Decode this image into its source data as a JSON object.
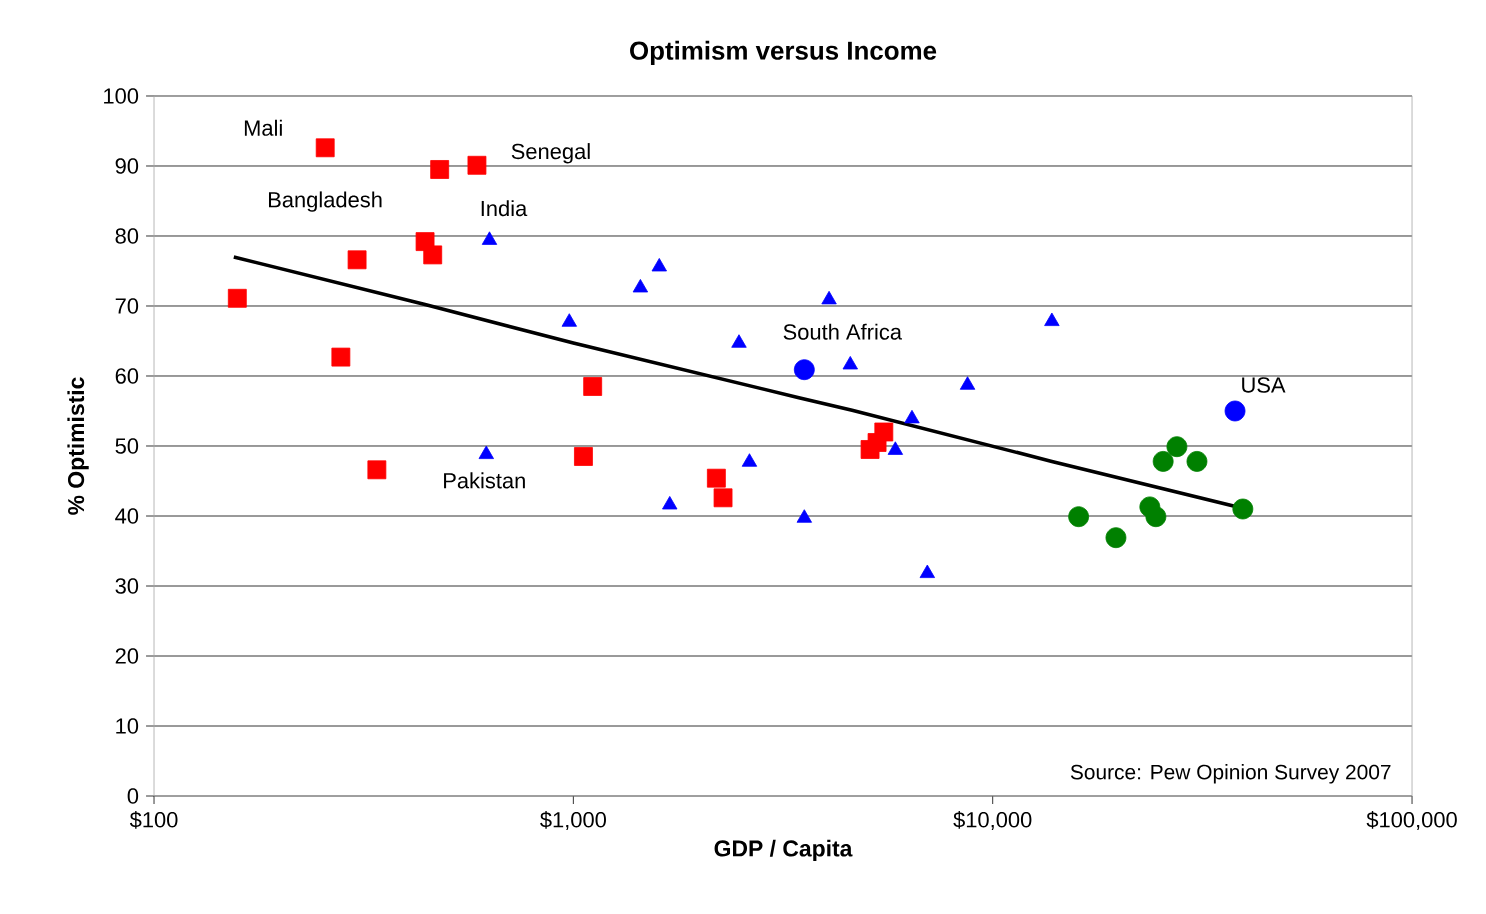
{
  "chart_data": {
    "type": "scatter",
    "title": "Optimism versus Income",
    "xlabel": "GDP / Capita",
    "ylabel": "% Optimistic",
    "log": "x",
    "xlim": [
      100,
      100000
    ],
    "ylim": [
      0,
      100
    ],
    "xticks": [
      {
        "value": 100,
        "label": "$100"
      },
      {
        "value": 1000,
        "label": "$1,000"
      },
      {
        "value": 10000,
        "label": "$10,000"
      },
      {
        "value": 100000,
        "label": "$100,000"
      }
    ],
    "yticks": [
      0,
      10,
      20,
      30,
      40,
      50,
      60,
      70,
      80,
      90,
      100
    ],
    "grid": "y",
    "series": [
      {
        "marker": "square",
        "color": "#ff0000",
        "x": [
          158,
          256,
          279,
          305,
          340,
          443,
          462,
          480,
          589,
          1112,
          1057,
          2193,
          2275,
          5500,
          5300,
          5100
        ],
        "values": [
          71.1,
          92.6,
          62.7,
          76.6,
          46.6,
          79.2,
          77.3,
          89.5,
          90.1,
          58.5,
          48.5,
          45.4,
          42.6,
          52,
          50.5,
          49.5
        ]
      },
      {
        "marker": "triangle",
        "color": "#0000ff",
        "x": [
          631,
          620,
          978,
          1445,
          1603,
          1698,
          2483,
          2630,
          3555,
          4072,
          4575,
          6420,
          5860,
          6985,
          8710,
          13840
        ],
        "values": [
          79.4,
          48.8,
          67.7,
          72.6,
          75.6,
          41.6,
          64.7,
          47.7,
          39.7,
          70.9,
          61.6,
          53.9,
          49.4,
          31.8,
          58.7,
          67.8
        ]
      },
      {
        "marker": "circle",
        "color": "#0000ff",
        "x": [
          3555,
          37840
        ],
        "values": [
          60.9,
          55
        ]
      },
      {
        "marker": "circle",
        "color": "#008000",
        "x": [
          16030,
          19680,
          23700,
          24500,
          25500,
          27500,
          30700,
          39500
        ],
        "values": [
          39.9,
          36.9,
          41.3,
          39.9,
          47.8,
          49.9,
          47.8,
          41.0
        ]
      },
      {
        "type": "line",
        "marker": "none",
        "color": "#000000",
        "x": [
          155,
          443,
          1000,
          3450,
          4620,
          13840,
          39500
        ],
        "values": [
          77,
          70.2,
          64.7,
          56.9,
          55.1,
          47.8,
          41.1
        ]
      }
    ],
    "annotations": [
      {
        "text": "Mali",
        "x": 256,
        "y": 92.6
      },
      {
        "text": "Senegal",
        "x": 589,
        "y": 90.1
      },
      {
        "text": "Bangladesh",
        "x": 443,
        "y": 79.2
      },
      {
        "text": "India",
        "x": 631,
        "y": 79.4
      },
      {
        "text": "Pakistan",
        "x": 620,
        "y": 48.8
      },
      {
        "text": "South Africa",
        "x": 3555,
        "y": 60.9
      },
      {
        "text": "USA",
        "x": 37840,
        "y": 55
      },
      "Source: Pew Opinion Survey 2007"
    ]
  }
}
